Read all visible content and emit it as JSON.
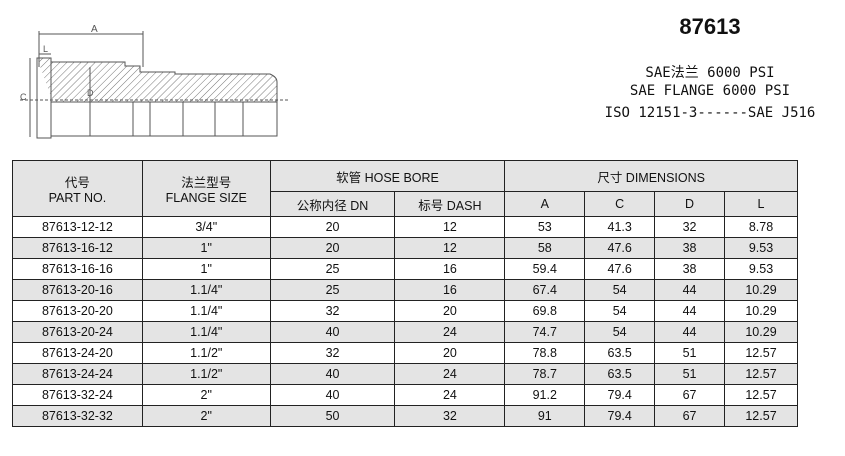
{
  "drawing": {
    "labels": {
      "a": "A",
      "l": "L",
      "c": "C",
      "d": "D"
    }
  },
  "title": "87613",
  "spec_lines": [
    "SAE法兰  6000 PSI",
    "SAE FLANGE 6000 PSI",
    "ISO 12151-3------SAE J516"
  ],
  "table": {
    "headers": {
      "part_cn": "代号",
      "part_en": "PART NO.",
      "flange_cn": "法兰型号",
      "flange_en": "FLANGE SIZE",
      "hose_bore": "软管 HOSE BORE",
      "dimensions": "尺寸 DIMENSIONS",
      "dn": "公称内径 DN",
      "dash": "标号 DASH",
      "a": "A",
      "c": "C",
      "d": "D",
      "l": "L"
    },
    "rows": [
      [
        "87613-12-12",
        "3/4\"",
        "20",
        "12",
        "53",
        "41.3",
        "32",
        "8.78"
      ],
      [
        "87613-16-12",
        "1\"",
        "20",
        "12",
        "58",
        "47.6",
        "38",
        "9.53"
      ],
      [
        "87613-16-16",
        "1\"",
        "25",
        "16",
        "59.4",
        "47.6",
        "38",
        "9.53"
      ],
      [
        "87613-20-16",
        "1.1/4\"",
        "25",
        "16",
        "67.4",
        "54",
        "44",
        "10.29"
      ],
      [
        "87613-20-20",
        "1.1/4\"",
        "32",
        "20",
        "69.8",
        "54",
        "44",
        "10.29"
      ],
      [
        "87613-20-24",
        "1.1/4\"",
        "40",
        "24",
        "74.7",
        "54",
        "44",
        "10.29"
      ],
      [
        "87613-24-20",
        "1.1/2\"",
        "32",
        "20",
        "78.8",
        "63.5",
        "51",
        "12.57"
      ],
      [
        "87613-24-24",
        "1.1/2\"",
        "40",
        "24",
        "78.7",
        "63.5",
        "51",
        "12.57"
      ],
      [
        "87613-32-24",
        "2\"",
        "40",
        "24",
        "91.2",
        "79.4",
        "67",
        "12.57"
      ],
      [
        "87613-32-32",
        "2\"",
        "50",
        "32",
        "91",
        "79.4",
        "67",
        "12.57"
      ]
    ]
  }
}
